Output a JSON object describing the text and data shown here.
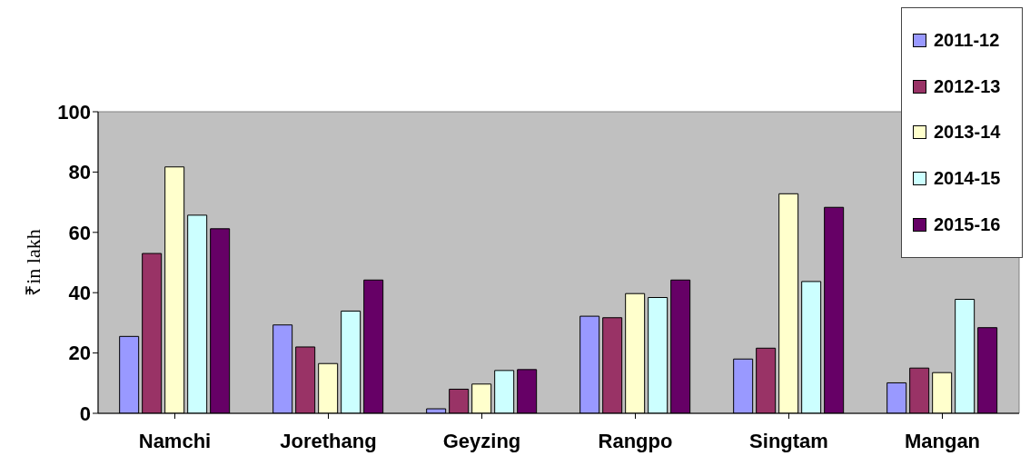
{
  "chart_data": {
    "type": "bar",
    "ylabel": "₹in lakh",
    "categories": [
      "Namchi",
      "Jorethang",
      "Geyzing",
      "Rangpo",
      "Singtam",
      "Mangan"
    ],
    "series": [
      {
        "name": "2011-12",
        "color": "#9999ff",
        "values": [
          25.5,
          29.3,
          1.5,
          32.2,
          18,
          10.1
        ]
      },
      {
        "name": "2012-13",
        "color": "#993366",
        "values": [
          53,
          22,
          8,
          31.7,
          21.6,
          15
        ]
      },
      {
        "name": "2013-14",
        "color": "#ffffcc",
        "values": [
          81.7,
          16.5,
          9.7,
          39.7,
          72.8,
          13.5
        ]
      },
      {
        "name": "2014-15",
        "color": "#ccffff",
        "values": [
          65.7,
          33.9,
          14.2,
          38.4,
          43.7,
          37.8
        ]
      },
      {
        "name": "2015-16",
        "color": "#660066",
        "values": [
          61.2,
          44.2,
          14.5,
          44.2,
          68.3,
          28.4
        ]
      }
    ],
    "ylim": [
      0,
      100
    ],
    "yticks": [
      0,
      20,
      40,
      60,
      80,
      100
    ],
    "grid": false,
    "legend": "top right"
  }
}
